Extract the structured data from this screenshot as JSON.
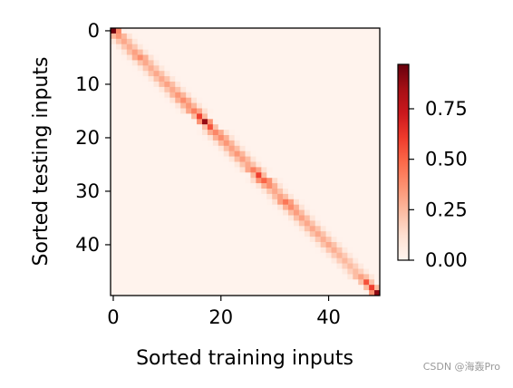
{
  "chart_data": {
    "type": "heatmap",
    "title": "",
    "xlabel": "Sorted training inputs",
    "ylabel": "Sorted testing inputs",
    "n_rows": 50,
    "n_cols": 50,
    "x_ticks": [
      0,
      20,
      40
    ],
    "y_ticks": [
      0,
      10,
      20,
      30,
      40
    ],
    "xlim": [
      0,
      50
    ],
    "ylim": [
      50,
      0
    ],
    "colormap": "Reds",
    "colormap_stops": [
      "#fff5f0",
      "#fee0d2",
      "#fcbba1",
      "#fc9272",
      "#fb6a4a",
      "#ef3b2c",
      "#cb181d",
      "#a50f15",
      "#67000d"
    ],
    "color_range": [
      0,
      0.97
    ],
    "colorbar_ticks": [
      "0.00",
      "0.25",
      "0.50",
      "0.75"
    ],
    "grid": false,
    "structure": "diagonal band: each test row i weights training columns near i; off-diagonal values ~0.01",
    "diagonal_peak_values": [
      0.95,
      0.35,
      0.3,
      0.28,
      0.32,
      0.38,
      0.3,
      0.28,
      0.3,
      0.3,
      0.32,
      0.3,
      0.35,
      0.38,
      0.35,
      0.42,
      0.6,
      0.88,
      0.55,
      0.4,
      0.38,
      0.35,
      0.32,
      0.35,
      0.33,
      0.3,
      0.42,
      0.6,
      0.5,
      0.38,
      0.3,
      0.32,
      0.45,
      0.38,
      0.33,
      0.32,
      0.3,
      0.3,
      0.3,
      0.28,
      0.3,
      0.28,
      0.26,
      0.25,
      0.24,
      0.24,
      0.32,
      0.55,
      0.6,
      0.9
    ]
  },
  "watermark": "CSDN @海轰Pro"
}
